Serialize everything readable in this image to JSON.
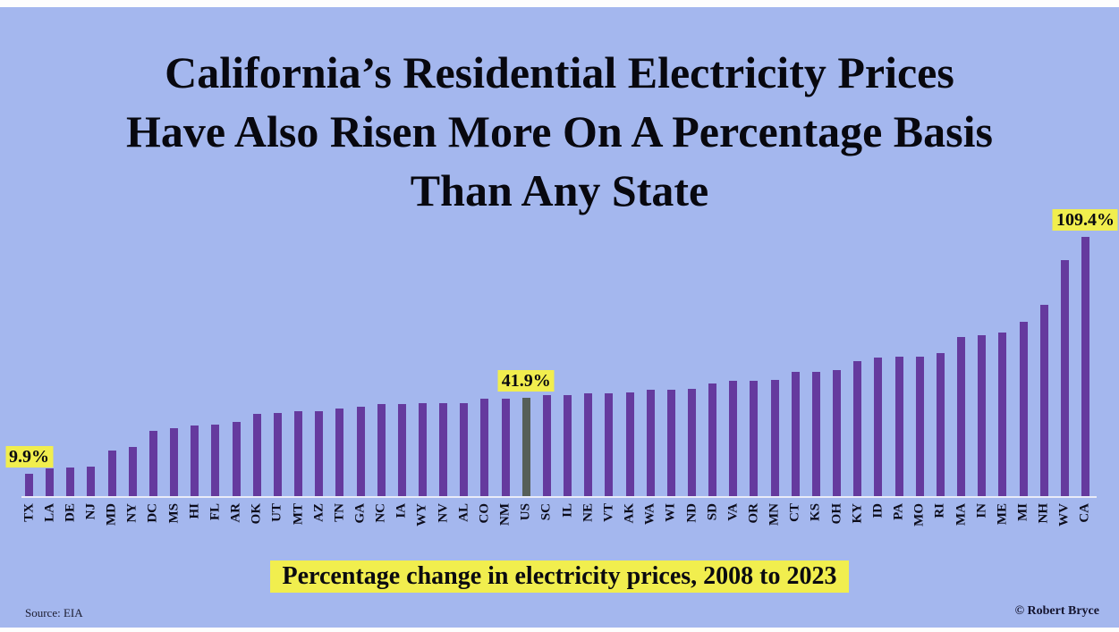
{
  "title": {
    "lines": [
      "California’s Residential Electricity Prices",
      "Have Also Risen More On A Percentage Basis",
      "Than Any State"
    ]
  },
  "caption": "Percentage change in electricity prices, 2008 to 2023",
  "source": "Source: EIA",
  "credit": "© Robert Bryce",
  "colors": {
    "background": "#a4b7ee",
    "bar": "#653a9e",
    "us_bar": "#565f58",
    "highlight": "#f1ee4e",
    "axis_line": "#e9ebf8",
    "text": "#08080f"
  },
  "chart_data": {
    "type": "bar",
    "title": "California’s Residential Electricity Prices Have Also Risen More On A Percentage Basis Than Any State",
    "xlabel": "",
    "ylabel": "Percentage change in electricity prices, 2008 to 2023",
    "ylim": [
      0,
      120
    ],
    "grid": false,
    "legend": "none",
    "highlight_category": "US",
    "categories": [
      "TX",
      "LA",
      "DE",
      "NJ",
      "MD",
      "NY",
      "DC",
      "MS",
      "HI",
      "FL",
      "AR",
      "OK",
      "UT",
      "MT",
      "AZ",
      "TN",
      "GA",
      "NC",
      "IA",
      "WY",
      "NV",
      "AL",
      "CO",
      "NM",
      "US",
      "SC",
      "IL",
      "NE",
      "VT",
      "AK",
      "WA",
      "WI",
      "ND",
      "SD",
      "VA",
      "OR",
      "MN",
      "CT",
      "KS",
      "OH",
      "KY",
      "ID",
      "PA",
      "MO",
      "RI",
      "MA",
      "IN",
      "ME",
      "MI",
      "NH",
      "WV",
      "CA"
    ],
    "values": [
      9.9,
      12.0,
      12.4,
      12.7,
      19.6,
      21.1,
      27.8,
      28.9,
      29.9,
      30.5,
      31.6,
      34.8,
      35.5,
      36.2,
      36.2,
      37.4,
      37.8,
      39.1,
      39.1,
      39.3,
      39.6,
      39.6,
      41.2,
      41.4,
      41.9,
      42.7,
      42.7,
      43.5,
      43.5,
      44.1,
      45.2,
      45.3,
      45.6,
      47.9,
      48.7,
      48.9,
      49.4,
      52.5,
      52.7,
      53.4,
      57.3,
      58.8,
      59.0,
      59.2,
      60.4,
      67.2,
      68.2,
      69.2,
      73.8,
      80.7,
      99.6,
      109.4
    ],
    "annotations": [
      {
        "category": "TX",
        "text": "9.9%"
      },
      {
        "category": "US",
        "text": "41.9%"
      },
      {
        "category": "CA",
        "text": "109.4%"
      }
    ]
  }
}
